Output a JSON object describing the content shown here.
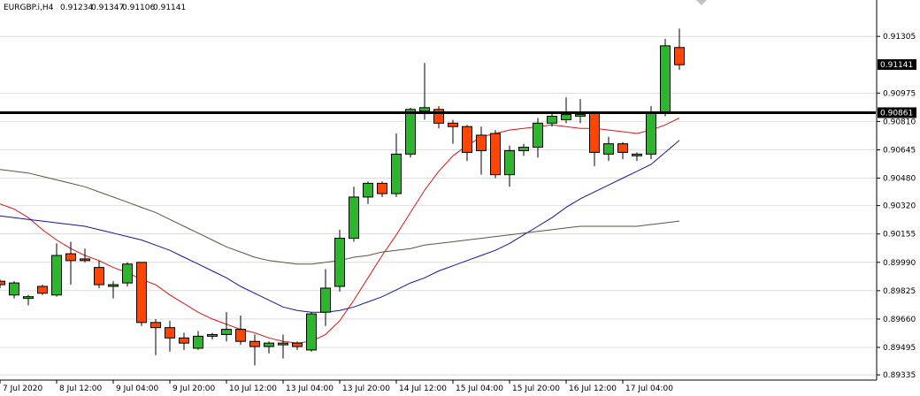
{
  "window": {
    "symbol_label": "EURGBP.i,H4",
    "ohlc_values": [
      "0.91234",
      "0.91347",
      "0.91106",
      "0.91141"
    ]
  },
  "colors": {
    "bull": "#2DB52D",
    "bear": "#FF4500",
    "wick": "#000000",
    "ma_fast": "#E01414",
    "ma_mid": "#1414A0",
    "ma_slow": "#505A3C",
    "hline": "#000000",
    "grid": "#C8C8C8",
    "frame": "#000000"
  },
  "chart_data": {
    "type": "candlestick",
    "y_axis_labels": [
      "0.91305",
      "0.90975",
      "0.90810",
      "0.90645",
      "0.90480",
      "0.90320",
      "0.90155",
      "0.89990",
      "0.89825",
      "0.89660",
      "0.89495",
      "0.89335"
    ],
    "x_axis_labels": [
      "7 Jul 2020",
      "8 Jul 12:00",
      "9 Jul 04:00",
      "9 Jul 20:00",
      "10 Jul 12:00",
      "13 Jul 04:00",
      "13 Jul 20:00",
      "14 Jul 12:00",
      "15 Jul 04:00",
      "15 Jul 20:00",
      "16 Jul 12:00",
      "17 Jul 04:00"
    ],
    "ylim": [
      0.89315,
      0.91455
    ],
    "current_price_label": "0.91141",
    "horizontal_line_label": "0.90861",
    "horizontal_line_value": 0.90861,
    "candles": [
      [
        0.8988,
        0.8989,
        0.8984,
        0.8986
      ],
      [
        0.898,
        0.8988,
        0.8978,
        0.8987
      ],
      [
        0.8978,
        0.898,
        0.8974,
        0.8979
      ],
      [
        0.8985,
        0.8986,
        0.898,
        0.8981
      ],
      [
        0.898,
        0.901,
        0.8979,
        0.9003
      ],
      [
        0.9004,
        0.9011,
        0.8986,
        0.9
      ],
      [
        0.9001,
        0.9007,
        0.8999,
        0.9
      ],
      [
        0.8996,
        0.9,
        0.8984,
        0.8986
      ],
      [
        0.8985,
        0.8988,
        0.8978,
        0.8986
      ],
      [
        0.8987,
        0.8999,
        0.8985,
        0.8998
      ],
      [
        0.8999,
        0.8999,
        0.8962,
        0.8964
      ],
      [
        0.8964,
        0.8966,
        0.8945,
        0.8961
      ],
      [
        0.8961,
        0.8965,
        0.8947,
        0.8955
      ],
      [
        0.8955,
        0.8958,
        0.8948,
        0.8952
      ],
      [
        0.8949,
        0.8959,
        0.8948,
        0.8956
      ],
      [
        0.8956,
        0.8958,
        0.8954,
        0.8957
      ],
      [
        0.8957,
        0.897,
        0.8953,
        0.896
      ],
      [
        0.896,
        0.8968,
        0.8951,
        0.8953
      ],
      [
        0.8953,
        0.8957,
        0.8939,
        0.895
      ],
      [
        0.895,
        0.8953,
        0.8946,
        0.8952
      ],
      [
        0.8951,
        0.8957,
        0.8943,
        0.8952
      ],
      [
        0.8952,
        0.8953,
        0.8948,
        0.895
      ],
      [
        0.8948,
        0.897,
        0.8947,
        0.8969
      ],
      [
        0.897,
        0.8995,
        0.8962,
        0.8984
      ],
      [
        0.8985,
        0.9018,
        0.8982,
        0.9013
      ],
      [
        0.9013,
        0.9043,
        0.9011,
        0.9037
      ],
      [
        0.9037,
        0.9046,
        0.9033,
        0.9045
      ],
      [
        0.9045,
        0.9046,
        0.9037,
        0.9039
      ],
      [
        0.9039,
        0.9074,
        0.9037,
        0.9062
      ],
      [
        0.9062,
        0.9089,
        0.906,
        0.9088
      ],
      [
        0.9087,
        0.9115,
        0.9082,
        0.9089
      ],
      [
        0.9088,
        0.909,
        0.9077,
        0.908
      ],
      [
        0.908,
        0.9082,
        0.9068,
        0.9078
      ],
      [
        0.9078,
        0.9079,
        0.9058,
        0.9063
      ],
      [
        0.9073,
        0.9078,
        0.905,
        0.9064
      ],
      [
        0.9074,
        0.9076,
        0.9048,
        0.905
      ],
      [
        0.905,
        0.9067,
        0.9043,
        0.9064
      ],
      [
        0.9064,
        0.9068,
        0.9061,
        0.9066
      ],
      [
        0.9066,
        0.9083,
        0.906,
        0.908
      ],
      [
        0.908,
        0.9086,
        0.9078,
        0.9084
      ],
      [
        0.9082,
        0.9095,
        0.908,
        0.9085
      ],
      [
        0.9084,
        0.9094,
        0.908,
        0.9085
      ],
      [
        0.9086,
        0.9087,
        0.9055,
        0.9063
      ],
      [
        0.9062,
        0.9072,
        0.9058,
        0.9068
      ],
      [
        0.9068,
        0.9069,
        0.9059,
        0.9063
      ],
      [
        0.9061,
        0.9063,
        0.9058,
        0.9062
      ],
      [
        0.9062,
        0.909,
        0.9059,
        0.9086
      ],
      [
        0.9086,
        0.9129,
        0.9084,
        0.9125
      ],
      [
        0.9124,
        0.9135,
        0.9111,
        0.9114
      ]
    ],
    "moving_averages": [
      {
        "color_key": "ma_fast",
        "start_index": 0,
        "values": [
          0.9033,
          0.903,
          0.9025,
          0.9018,
          0.9012,
          0.9007,
          0.9003,
          0.9,
          0.8996,
          0.8993,
          0.8989,
          0.8986,
          0.898,
          0.8975,
          0.897,
          0.8966,
          0.8963,
          0.896,
          0.8958,
          0.8955,
          0.8953,
          0.8952,
          0.8953,
          0.8957,
          0.8965,
          0.8977,
          0.899,
          0.9003,
          0.9015,
          0.9028,
          0.9041,
          0.9052,
          0.9061,
          0.9067,
          0.9072,
          0.9074,
          0.9076,
          0.9077,
          0.9078,
          0.9079,
          0.9078,
          0.9077,
          0.9077,
          0.9076,
          0.9075,
          0.9074,
          0.9076,
          0.9079,
          0.9083
        ]
      },
      {
        "color_key": "ma_mid",
        "start_index": 0,
        "values": [
          0.9026,
          0.9025,
          0.9024,
          0.9023,
          0.9022,
          0.9021,
          0.902,
          0.9018,
          0.9016,
          0.9014,
          0.9012,
          0.9009,
          0.9006,
          0.9002,
          0.8998,
          0.8994,
          0.899,
          0.8985,
          0.8981,
          0.8977,
          0.8973,
          0.8971,
          0.897,
          0.897,
          0.8971,
          0.8973,
          0.8976,
          0.8979,
          0.8983,
          0.8987,
          0.899,
          0.8994,
          0.8997,
          0.9,
          0.9003,
          0.9006,
          0.901,
          0.9015,
          0.902,
          0.9025,
          0.9031,
          0.9036,
          0.904,
          0.9044,
          0.9048,
          0.9052,
          0.9056,
          0.9063,
          0.907
        ]
      },
      {
        "color_key": "ma_slow",
        "start_index": 0,
        "values": [
          0.9053,
          0.9052,
          0.9051,
          0.9049,
          0.9047,
          0.9045,
          0.9043,
          0.904,
          0.9037,
          0.9034,
          0.9031,
          0.9028,
          0.9024,
          0.902,
          0.9016,
          0.9012,
          0.9008,
          0.9005,
          0.9002,
          0.9,
          0.8999,
          0.8998,
          0.8998,
          0.8999,
          0.9,
          0.9002,
          0.9003,
          0.9005,
          0.9006,
          0.9007,
          0.9009,
          0.901,
          0.9011,
          0.9012,
          0.9013,
          0.9014,
          0.9015,
          0.9016,
          0.9017,
          0.9018,
          0.9019,
          0.902,
          0.902,
          0.902,
          0.902,
          0.902,
          0.9021,
          0.9022,
          0.9023
        ]
      }
    ]
  }
}
